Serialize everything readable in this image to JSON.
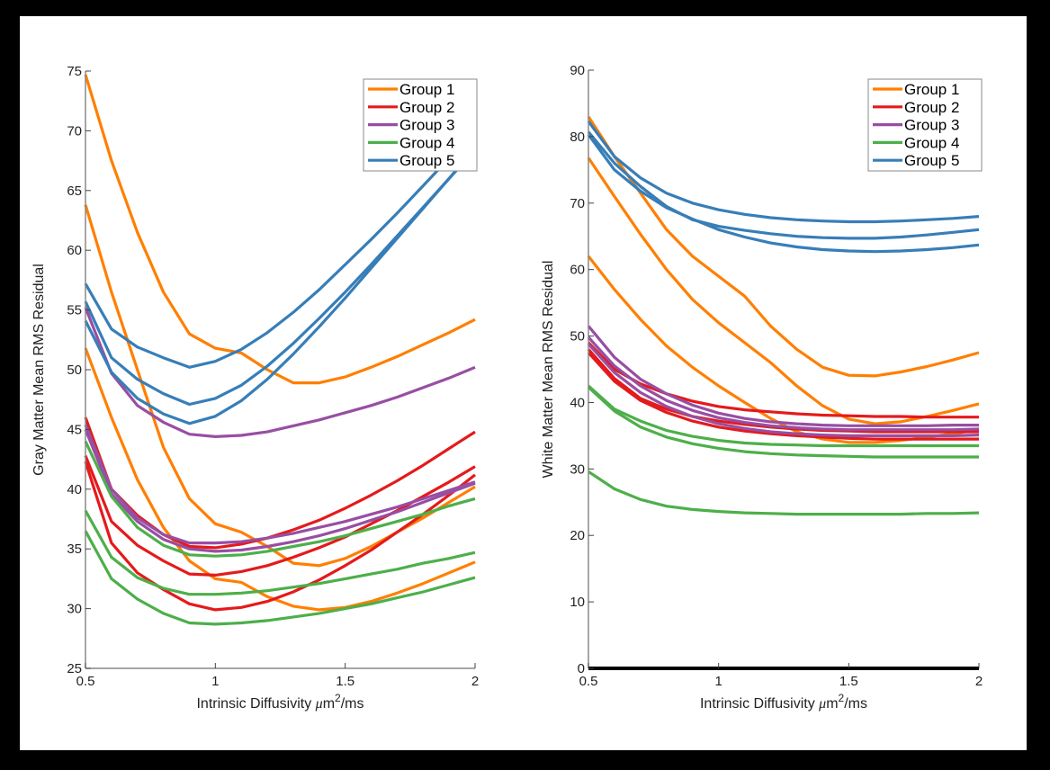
{
  "chart_data": [
    {
      "type": "line",
      "title": "",
      "xlabel": "Intrinsic Diffusivity μm²/ms",
      "xlabel_parts": {
        "prefix": "Intrinsic Diffusivity ",
        "mu": "μ",
        "unit": "m",
        "sup": "2",
        "suffix": "/ms"
      },
      "ylabel": "Gray Matter Mean RMS Residual",
      "xlim": [
        0.5,
        2
      ],
      "ylim": [
        25,
        75
      ],
      "xticks": [
        0.5,
        1,
        1.5,
        2
      ],
      "xtick_labels": [
        "0.5",
        "1",
        "1.5",
        "2"
      ],
      "yticks": [
        25,
        30,
        35,
        40,
        45,
        50,
        55,
        60,
        65,
        70,
        75
      ],
      "ytick_labels": [
        "25",
        "30",
        "35",
        "40",
        "45",
        "50",
        "55",
        "60",
        "65",
        "70",
        "75"
      ],
      "grid": false,
      "legend_position": "top-right",
      "x": [
        0.5,
        0.6,
        0.7,
        0.8,
        0.9,
        1.0,
        1.1,
        1.2,
        1.3,
        1.4,
        1.5,
        1.6,
        1.7,
        1.8,
        1.9,
        2.0
      ],
      "series": [
        {
          "name": "Group 1",
          "group": 1,
          "values": [
            74.7,
            67.5,
            61.5,
            56.5,
            53.0,
            51.8,
            51.4,
            50.0,
            48.9,
            48.9,
            49.4,
            50.2,
            51.1,
            52.1,
            53.1,
            54.2
          ]
        },
        {
          "name": "Group 1",
          "group": 1,
          "values": [
            63.8,
            56.5,
            50.0,
            43.5,
            39.2,
            37.1,
            36.4,
            35.2,
            33.8,
            33.6,
            34.2,
            35.2,
            36.4,
            37.6,
            38.9,
            40.2
          ]
        },
        {
          "name": "Group 1",
          "group": 1,
          "values": [
            51.8,
            46.0,
            40.8,
            36.8,
            34.0,
            32.5,
            32.2,
            31.0,
            30.2,
            29.9,
            30.1,
            30.6,
            31.3,
            32.1,
            33.0,
            33.9
          ]
        },
        {
          "name": "Group 2",
          "group": 2,
          "values": [
            46.0,
            40.0,
            37.8,
            36.2,
            35.2,
            35.1,
            35.4,
            35.9,
            36.6,
            37.4,
            38.4,
            39.5,
            40.7,
            42.0,
            43.4,
            44.8
          ]
        },
        {
          "name": "Group 2",
          "group": 2,
          "values": [
            42.8,
            37.3,
            35.3,
            34.0,
            32.9,
            32.8,
            33.1,
            33.6,
            34.3,
            35.1,
            36.0,
            37.1,
            38.2,
            39.4,
            40.6,
            41.9
          ]
        },
        {
          "name": "Group 2",
          "group": 2,
          "values": [
            42.3,
            35.5,
            33.0,
            31.6,
            30.4,
            29.9,
            30.1,
            30.6,
            31.4,
            32.4,
            33.6,
            34.9,
            36.4,
            37.9,
            39.5,
            41.2
          ]
        },
        {
          "name": "Group 3",
          "group": 3,
          "values": [
            55.2,
            49.7,
            47.0,
            45.6,
            44.6,
            44.4,
            44.5,
            44.8,
            45.3,
            45.8,
            46.4,
            47.0,
            47.7,
            48.5,
            49.3,
            50.2
          ]
        },
        {
          "name": "Group 3",
          "group": 3,
          "values": [
            45.4,
            40.0,
            37.6,
            36.2,
            35.5,
            35.5,
            35.6,
            35.9,
            36.3,
            36.8,
            37.3,
            37.9,
            38.5,
            39.2,
            39.9,
            40.6
          ]
        },
        {
          "name": "Group 3",
          "group": 3,
          "values": [
            45.0,
            39.6,
            37.3,
            35.8,
            35.0,
            34.8,
            34.9,
            35.2,
            35.6,
            36.1,
            36.7,
            37.4,
            38.1,
            38.9,
            39.7,
            40.5
          ]
        },
        {
          "name": "Group 4",
          "group": 4,
          "values": [
            44.0,
            39.4,
            36.8,
            35.3,
            34.5,
            34.4,
            34.5,
            34.8,
            35.2,
            35.6,
            36.1,
            36.7,
            37.3,
            37.9,
            38.6,
            39.2
          ]
        },
        {
          "name": "Group 4",
          "group": 4,
          "values": [
            38.2,
            34.3,
            32.6,
            31.7,
            31.2,
            31.2,
            31.3,
            31.5,
            31.8,
            32.1,
            32.5,
            32.9,
            33.3,
            33.8,
            34.2,
            34.7
          ]
        },
        {
          "name": "Group 4",
          "group": 4,
          "values": [
            36.5,
            32.5,
            30.8,
            29.6,
            28.8,
            28.7,
            28.8,
            29.0,
            29.3,
            29.6,
            30.0,
            30.4,
            30.9,
            31.4,
            32.0,
            32.6
          ]
        },
        {
          "name": "Group 5",
          "group": 5,
          "values": [
            57.2,
            53.4,
            51.9,
            51.0,
            50.2,
            50.7,
            51.7,
            53.1,
            54.8,
            56.7,
            58.8,
            60.9,
            63.1,
            65.4,
            67.7,
            70.1
          ]
        },
        {
          "name": "Group 5",
          "group": 5,
          "values": [
            55.7,
            51.0,
            49.2,
            48.0,
            47.1,
            47.6,
            48.7,
            50.3,
            52.2,
            54.3,
            56.5,
            58.8,
            61.2,
            63.6,
            66.0,
            68.4
          ]
        },
        {
          "name": "Group 5",
          "group": 5,
          "values": [
            54.1,
            49.8,
            47.6,
            46.3,
            45.5,
            46.1,
            47.4,
            49.2,
            51.3,
            53.6,
            56.0,
            58.5,
            61.0,
            63.5,
            66.0,
            68.6
          ]
        }
      ]
    },
    {
      "type": "line",
      "title": "",
      "xlabel": "Intrinsic Diffusivity μm²/ms",
      "xlabel_parts": {
        "prefix": "Intrinsic Diffusivity ",
        "mu": "μ",
        "unit": "m",
        "sup": "2",
        "suffix": "/ms"
      },
      "ylabel": "White Matter Mean RMS Residual",
      "xlim": [
        0.5,
        2
      ],
      "ylim": [
        0,
        90
      ],
      "xticks": [
        0.5,
        1,
        1.5,
        2
      ],
      "xtick_labels": [
        "0.5",
        "1",
        "1.5",
        "2"
      ],
      "yticks": [
        0,
        10,
        20,
        30,
        40,
        50,
        60,
        70,
        80,
        90
      ],
      "ytick_labels": [
        "0",
        "10",
        "20",
        "30",
        "40",
        "50",
        "60",
        "70",
        "80",
        "90"
      ],
      "grid": false,
      "legend_position": "top-right",
      "x": [
        0.5,
        0.6,
        0.7,
        0.8,
        0.9,
        1.0,
        1.1,
        1.2,
        1.3,
        1.4,
        1.5,
        1.6,
        1.7,
        1.8,
        1.9,
        2.0
      ],
      "series": [
        {
          "name": "Group 1",
          "group": 1,
          "values": [
            83.0,
            77.0,
            71.5,
            66.0,
            62.0,
            59.0,
            56.0,
            51.5,
            48.0,
            45.3,
            44.1,
            44.0,
            44.6,
            45.4,
            46.4,
            47.5
          ]
        },
        {
          "name": "Group 1",
          "group": 1,
          "values": [
            76.8,
            71.0,
            65.3,
            60.0,
            55.5,
            52.0,
            49.0,
            46.0,
            42.5,
            39.5,
            37.5,
            36.8,
            37.1,
            37.9,
            38.8,
            39.8
          ]
        },
        {
          "name": "Group 1",
          "group": 1,
          "values": [
            62.0,
            57.0,
            52.5,
            48.5,
            45.3,
            42.5,
            40.0,
            37.6,
            35.6,
            34.5,
            34.0,
            34.0,
            34.3,
            34.8,
            35.3,
            35.9
          ]
        },
        {
          "name": "Group 2",
          "group": 2,
          "values": [
            49.0,
            45.0,
            42.8,
            41.3,
            40.2,
            39.4,
            38.9,
            38.6,
            38.3,
            38.1,
            38.0,
            37.9,
            37.9,
            37.8,
            37.8,
            37.8
          ]
        },
        {
          "name": "Group 2",
          "group": 2,
          "values": [
            48.0,
            43.6,
            40.6,
            39.0,
            37.9,
            37.2,
            36.7,
            36.3,
            36.0,
            35.8,
            35.7,
            35.6,
            35.6,
            35.6,
            35.6,
            35.6
          ]
        },
        {
          "name": "Group 2",
          "group": 2,
          "values": [
            47.5,
            43.2,
            40.3,
            38.5,
            37.2,
            36.3,
            35.7,
            35.3,
            35.0,
            34.8,
            34.6,
            34.5,
            34.5,
            34.5,
            34.5,
            34.5
          ]
        },
        {
          "name": "Group 3",
          "group": 3,
          "values": [
            51.5,
            46.8,
            43.5,
            41.3,
            39.6,
            38.4,
            37.6,
            37.1,
            36.8,
            36.6,
            36.5,
            36.5,
            36.5,
            36.5,
            36.6,
            36.6
          ]
        },
        {
          "name": "Group 3",
          "group": 3,
          "values": [
            49.8,
            45.5,
            42.5,
            40.3,
            38.8,
            37.7,
            37.0,
            36.5,
            36.2,
            36.0,
            35.9,
            35.9,
            35.9,
            35.9,
            35.9,
            36.0
          ]
        },
        {
          "name": "Group 3",
          "group": 3,
          "values": [
            48.8,
            44.5,
            41.5,
            39.4,
            37.9,
            36.8,
            36.1,
            35.6,
            35.3,
            35.1,
            35.0,
            35.0,
            35.0,
            35.0,
            35.0,
            35.1
          ]
        },
        {
          "name": "Group 4",
          "group": 4,
          "values": [
            42.5,
            39.0,
            37.2,
            35.8,
            34.9,
            34.3,
            33.9,
            33.7,
            33.6,
            33.5,
            33.5,
            33.5,
            33.5,
            33.5,
            33.5,
            33.5
          ]
        },
        {
          "name": "Group 4",
          "group": 4,
          "values": [
            42.3,
            38.7,
            36.3,
            34.8,
            33.8,
            33.1,
            32.6,
            32.3,
            32.1,
            32.0,
            31.9,
            31.8,
            31.8,
            31.8,
            31.8,
            31.8
          ]
        },
        {
          "name": "Group 4",
          "group": 4,
          "values": [
            29.6,
            27.0,
            25.4,
            24.4,
            23.9,
            23.6,
            23.4,
            23.3,
            23.2,
            23.2,
            23.2,
            23.2,
            23.2,
            23.3,
            23.3,
            23.4
          ]
        },
        {
          "name": "Group 5",
          "group": 5,
          "values": [
            82.3,
            77.0,
            73.8,
            71.5,
            70.0,
            69.0,
            68.3,
            67.8,
            67.5,
            67.3,
            67.2,
            67.2,
            67.3,
            67.5,
            67.7,
            68.0
          ]
        },
        {
          "name": "Group 5",
          "group": 5,
          "values": [
            80.7,
            76.0,
            72.5,
            69.5,
            67.5,
            66.5,
            65.9,
            65.4,
            65.0,
            64.8,
            64.7,
            64.7,
            64.9,
            65.2,
            65.6,
            66.0
          ]
        },
        {
          "name": "Group 5",
          "group": 5,
          "values": [
            80.3,
            75.0,
            71.8,
            69.3,
            67.6,
            66.0,
            64.9,
            64.0,
            63.4,
            63.0,
            62.8,
            62.7,
            62.8,
            63.0,
            63.3,
            63.7
          ]
        }
      ]
    }
  ],
  "legend": {
    "entries": [
      {
        "label": "Group 1",
        "group": 1,
        "color": "#ff7f00"
      },
      {
        "label": "Group 2",
        "group": 2,
        "color": "#e41a1c"
      },
      {
        "label": "Group 3",
        "group": 3,
        "color": "#984ea3"
      },
      {
        "label": "Group 4",
        "group": 4,
        "color": "#4daf4a"
      },
      {
        "label": "Group 5",
        "group": 5,
        "color": "#377eb8"
      }
    ]
  },
  "colors": {
    "background": "#000000",
    "panel": "#ffffff",
    "axis": "#888888",
    "text": "#222222"
  }
}
